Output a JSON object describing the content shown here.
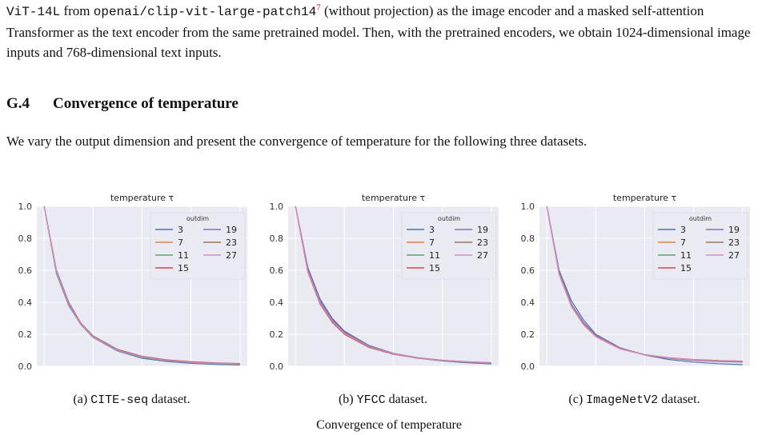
{
  "paragraph1": {
    "code1": "ViT-14L",
    "t1": " from ",
    "code2": "openai/clip-vit-large-patch14",
    "footnote": "7",
    "t2": " (without projection) as the image encoder and a masked self-attention Transformer as the text encoder from the same pretrained model. Then, with the pretrained encoders, we obtain 1024-dimensional image inputs and 768-dimensional text inputs."
  },
  "section": {
    "number": "G.4",
    "title": "Convergence of temperature"
  },
  "paragraph2": "We vary the output dimension and present the convergence of temperature for the following three datasets.",
  "colors": {
    "plot_bg": "#eaeaf2",
    "grid": "#ffffff",
    "3": "#4c72b0",
    "7": "#dd8452",
    "11": "#55a868",
    "15": "#c44e52",
    "19": "#8172b3",
    "23": "#937860",
    "27": "#da8bc3"
  },
  "figures": [
    {
      "caption_prefix": "(a) ",
      "caption_code": "CITE-seq",
      "caption_suffix": " dataset."
    },
    {
      "caption_prefix": "(b) ",
      "caption_code": "YFCC",
      "caption_suffix": " dataset."
    },
    {
      "caption_prefix": "(c) ",
      "caption_code": "ImageNetV2",
      "caption_suffix": " dataset."
    }
  ],
  "bottom_caption": "Convergence of temperature",
  "chart_data": [
    {
      "type": "line",
      "title": "temperature τ",
      "xlabel": "",
      "ylabel": "",
      "xlim": [
        -30,
        830
      ],
      "ylim": [
        0,
        1.0
      ],
      "xticks": [
        0,
        200,
        400,
        600,
        800
      ],
      "yticks": [
        0.0,
        0.2,
        0.4,
        0.6,
        0.8,
        1.0
      ],
      "grid": true,
      "legend": {
        "title": "outdim",
        "placement": "top-right",
        "columns": 2
      },
      "x": [
        0,
        50,
        100,
        150,
        200,
        300,
        400,
        500,
        600,
        700,
        800
      ],
      "series": [
        {
          "name": "3",
          "values": [
            1.0,
            0.58,
            0.38,
            0.26,
            0.18,
            0.095,
            0.05,
            0.03,
            0.018,
            0.012,
            0.008
          ]
        },
        {
          "name": "7",
          "values": [
            1.0,
            0.59,
            0.39,
            0.26,
            0.185,
            0.1,
            0.058,
            0.036,
            0.024,
            0.018,
            0.014
          ]
        },
        {
          "name": "11",
          "values": [
            1.0,
            0.585,
            0.385,
            0.262,
            0.182,
            0.098,
            0.055,
            0.034,
            0.022,
            0.016,
            0.012
          ]
        },
        {
          "name": "15",
          "values": [
            1.0,
            0.6,
            0.4,
            0.27,
            0.19,
            0.105,
            0.062,
            0.04,
            0.028,
            0.021,
            0.017
          ]
        },
        {
          "name": "19",
          "values": [
            1.0,
            0.6,
            0.395,
            0.268,
            0.188,
            0.103,
            0.06,
            0.038,
            0.026,
            0.02,
            0.015
          ]
        },
        {
          "name": "23",
          "values": [
            1.0,
            0.595,
            0.39,
            0.265,
            0.186,
            0.1,
            0.058,
            0.037,
            0.025,
            0.019,
            0.015
          ]
        },
        {
          "name": "27",
          "values": [
            1.0,
            0.592,
            0.388,
            0.264,
            0.184,
            0.099,
            0.057,
            0.036,
            0.024,
            0.018,
            0.014
          ]
        }
      ]
    },
    {
      "type": "line",
      "title": "temperature τ",
      "xlabel": "",
      "ylabel": "",
      "xlim": [
        -30,
        830
      ],
      "ylim": [
        0,
        1.0
      ],
      "xticks": [
        0,
        200,
        400,
        600,
        800
      ],
      "yticks": [
        0.0,
        0.2,
        0.4,
        0.6,
        0.8,
        1.0
      ],
      "grid": true,
      "legend": {
        "title": "outdim",
        "placement": "top-right",
        "columns": 2
      },
      "x": [
        0,
        50,
        100,
        150,
        200,
        300,
        400,
        500,
        600,
        700,
        800
      ],
      "series": [
        {
          "name": "3",
          "values": [
            1.0,
            0.62,
            0.42,
            0.3,
            0.22,
            0.13,
            0.08,
            0.05,
            0.033,
            0.022,
            0.015
          ]
        },
        {
          "name": "7",
          "values": [
            1.0,
            0.6,
            0.4,
            0.285,
            0.21,
            0.125,
            0.078,
            0.052,
            0.037,
            0.028,
            0.022
          ]
        },
        {
          "name": "11",
          "values": [
            1.0,
            0.605,
            0.405,
            0.29,
            0.212,
            0.126,
            0.079,
            0.052,
            0.036,
            0.026,
            0.02
          ]
        },
        {
          "name": "15",
          "values": [
            1.0,
            0.59,
            0.39,
            0.275,
            0.2,
            0.118,
            0.075,
            0.05,
            0.036,
            0.027,
            0.022
          ]
        },
        {
          "name": "19",
          "values": [
            1.0,
            0.61,
            0.41,
            0.292,
            0.215,
            0.128,
            0.08,
            0.053,
            0.037,
            0.027,
            0.021
          ]
        },
        {
          "name": "23",
          "values": [
            1.0,
            0.6,
            0.4,
            0.285,
            0.208,
            0.124,
            0.078,
            0.052,
            0.037,
            0.028,
            0.022
          ]
        },
        {
          "name": "27",
          "values": [
            1.0,
            0.598,
            0.398,
            0.283,
            0.206,
            0.122,
            0.077,
            0.051,
            0.036,
            0.027,
            0.021
          ]
        }
      ]
    },
    {
      "type": "line",
      "title": "temperature τ",
      "xlabel": "",
      "ylabel": "",
      "xlim": [
        -30,
        830
      ],
      "ylim": [
        0,
        1.0
      ],
      "xticks": [
        0,
        200,
        400,
        600,
        800
      ],
      "yticks": [
        0.0,
        0.2,
        0.4,
        0.6,
        0.8,
        1.0
      ],
      "grid": true,
      "legend": {
        "title": "outdim",
        "placement": "top-right",
        "columns": 2
      },
      "x": [
        0,
        50,
        100,
        150,
        200,
        300,
        400,
        500,
        600,
        700,
        800
      ],
      "series": [
        {
          "name": "3",
          "values": [
            1.0,
            0.6,
            0.41,
            0.29,
            0.2,
            0.115,
            0.07,
            0.042,
            0.026,
            0.016,
            0.01
          ]
        },
        {
          "name": "7",
          "values": [
            1.0,
            0.58,
            0.38,
            0.265,
            0.19,
            0.11,
            0.072,
            0.052,
            0.04,
            0.034,
            0.03
          ]
        },
        {
          "name": "11",
          "values": [
            1.0,
            0.585,
            0.385,
            0.27,
            0.192,
            0.112,
            0.072,
            0.05,
            0.038,
            0.031,
            0.027
          ]
        },
        {
          "name": "15",
          "values": [
            1.0,
            0.575,
            0.375,
            0.26,
            0.185,
            0.108,
            0.072,
            0.053,
            0.042,
            0.036,
            0.032
          ]
        },
        {
          "name": "19",
          "values": [
            1.0,
            0.59,
            0.39,
            0.274,
            0.195,
            0.113,
            0.072,
            0.05,
            0.037,
            0.03,
            0.026
          ]
        },
        {
          "name": "23",
          "values": [
            1.0,
            0.582,
            0.382,
            0.267,
            0.19,
            0.11,
            0.071,
            0.051,
            0.039,
            0.032,
            0.028
          ]
        },
        {
          "name": "27",
          "values": [
            1.0,
            0.578,
            0.378,
            0.263,
            0.187,
            0.109,
            0.071,
            0.052,
            0.041,
            0.035,
            0.031
          ]
        }
      ]
    }
  ]
}
